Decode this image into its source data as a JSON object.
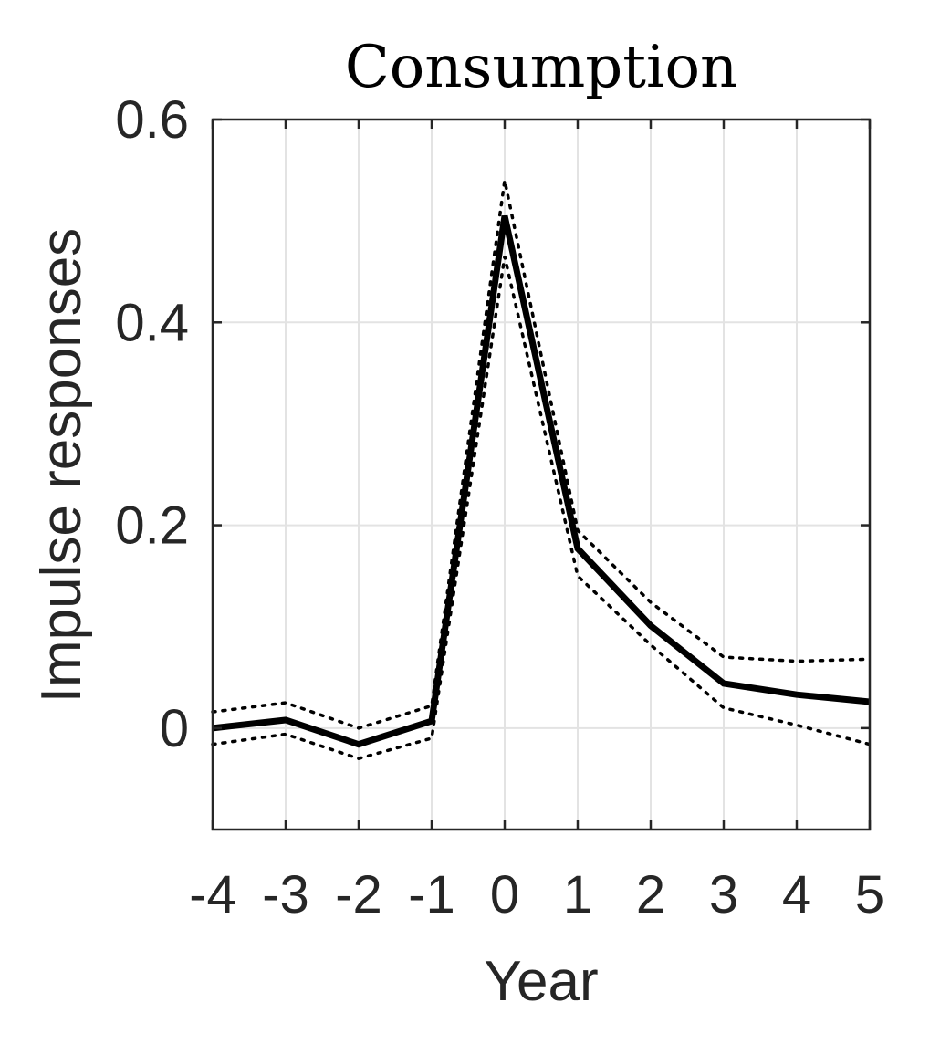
{
  "chart_data": {
    "type": "line",
    "title": "Consumption",
    "xlabel": "Year",
    "ylabel": "Impulse responses",
    "x": [
      -4,
      -3,
      -2,
      -1,
      0,
      1,
      2,
      3,
      4,
      5
    ],
    "x_ticks": [
      "-4",
      "-3",
      "-2",
      "-1",
      "0",
      "1",
      "2",
      "3",
      "4",
      "5"
    ],
    "y_ticks": [
      {
        "value": 0.6,
        "label": "0.6"
      },
      {
        "value": 0.4,
        "label": "0.4"
      },
      {
        "value": 0.2,
        "label": "0.2"
      },
      {
        "value": 0,
        "label": "0"
      }
    ],
    "xlim": [
      -4,
      5
    ],
    "ylim": [
      -0.1,
      0.6
    ],
    "grid": true,
    "series": [
      {
        "style": "solid",
        "values": [
          0.0,
          0.008,
          -0.016,
          0.007,
          0.505,
          0.177,
          0.101,
          0.044,
          0.033,
          0.026
        ]
      },
      {
        "style": "dotted",
        "values": [
          0.016,
          0.025,
          0.0,
          0.022,
          0.54,
          0.195,
          0.124,
          0.07,
          0.066,
          0.068
        ]
      },
      {
        "style": "dotted",
        "values": [
          -0.016,
          -0.006,
          -0.03,
          -0.01,
          0.465,
          0.15,
          0.082,
          0.02,
          0.003,
          -0.016
        ]
      }
    ]
  }
}
